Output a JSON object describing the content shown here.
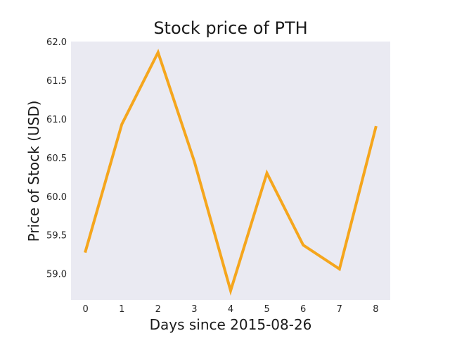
{
  "chart_data": {
    "type": "line",
    "title": "Stock price of PTH",
    "xlabel": "Days since 2015-08-26",
    "ylabel": "Price of Stock (USD)",
    "x": [
      0,
      1,
      2,
      3,
      4,
      5,
      6,
      7,
      8
    ],
    "series": [
      {
        "values": [
          59.29,
          60.93,
          61.86,
          60.45,
          58.78,
          60.3,
          59.37,
          59.06,
          60.89
        ],
        "color": "#f5a61d"
      }
    ],
    "xticks": [
      "0",
      "1",
      "2",
      "3",
      "4",
      "5",
      "6",
      "7",
      "8"
    ],
    "yticks": [
      "59.0",
      "59.5",
      "60.0",
      "60.5",
      "61.0",
      "61.5",
      "62.0"
    ],
    "xlim": [
      -0.4,
      8.4
    ],
    "ylim": [
      58.66,
      62.0
    ],
    "grid": false,
    "background": "#eaeaf2"
  }
}
